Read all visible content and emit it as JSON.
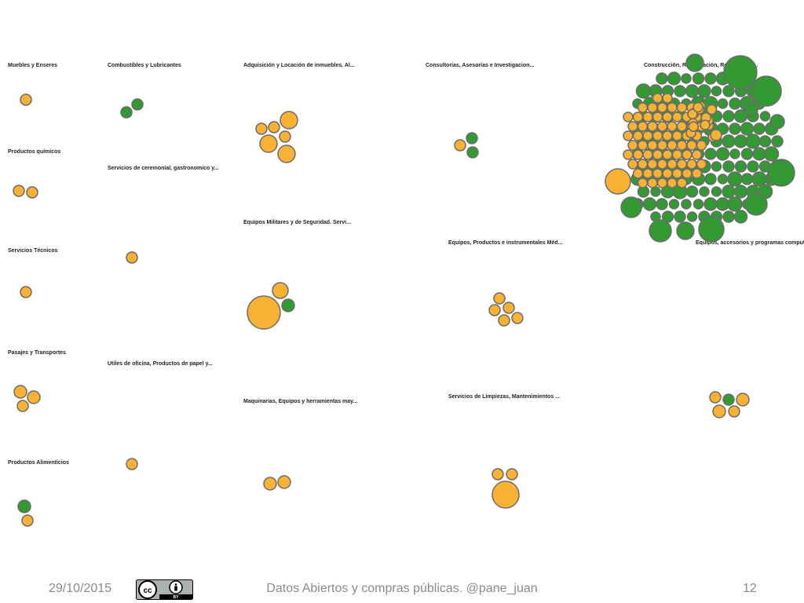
{
  "chart_data": {
    "type": "bubble",
    "colors": {
      "orange": "#f9b233",
      "green": "#339933",
      "stroke": "#6b6b6b"
    },
    "groups": [
      {
        "label": "Muebles y Enseres",
        "bubbles": [
          {
            "r": 7,
            "color": "orange"
          }
        ]
      },
      {
        "label": "Combustibles y Lubricantes",
        "bubbles": [
          {
            "r": 7,
            "color": "green"
          },
          {
            "r": 7,
            "color": "green"
          }
        ]
      },
      {
        "label": "Adquisición y Locación de inmuebles. Al...",
        "bubbles": [
          {
            "r": 11,
            "color": "orange"
          },
          {
            "r": 7,
            "color": "orange"
          },
          {
            "r": 7,
            "color": "orange"
          },
          {
            "r": 11,
            "color": "orange"
          },
          {
            "r": 7,
            "color": "orange"
          },
          {
            "r": 11,
            "color": "orange"
          }
        ]
      },
      {
        "label": "Consultorías, Asesorías e Investigacion...",
        "bubbles": [
          {
            "r": 7,
            "color": "orange"
          },
          {
            "r": 7,
            "color": "green"
          },
          {
            "r": 7,
            "color": "green"
          }
        ]
      },
      {
        "label": "Construcción, Restauración, Reconstrucc...",
        "bubbles": [
          {
            "r": 11,
            "color": "green"
          },
          {
            "r": 21,
            "color": "green"
          },
          {
            "r": 16,
            "color": "orange"
          },
          {
            "r": 19,
            "color": "green"
          },
          {
            "r": 17,
            "color": "green"
          },
          {
            "r": 14,
            "color": "green"
          },
          {
            "r": 14,
            "color": "green"
          },
          {
            "r": 16,
            "color": "green"
          },
          {
            "r": 13,
            "color": "green"
          },
          {
            "r": 11,
            "color": "green"
          },
          {
            "r": 9,
            "color": "green"
          },
          {
            "r": 8,
            "color": "green"
          },
          {
            "r": 7,
            "color": "orange"
          }
        ]
      },
      {
        "label": "Productos químicos",
        "bubbles": [
          {
            "r": 7,
            "color": "orange"
          },
          {
            "r": 7,
            "color": "orange"
          }
        ]
      },
      {
        "label": "Servicios de ceremonial, gastronomico y...",
        "bubbles": [
          {
            "r": 7,
            "color": "orange"
          }
        ]
      },
      {
        "label": "Equipos Militares y de Seguridad. Servi...",
        "bubbles": [
          {
            "r": 21,
            "color": "orange"
          },
          {
            "r": 10,
            "color": "orange"
          },
          {
            "r": 8,
            "color": "green"
          }
        ]
      },
      {
        "label": "Equipos, Productos e instrumentales Méd...",
        "bubbles": [
          {
            "r": 7,
            "color": "orange"
          },
          {
            "r": 7,
            "color": "orange"
          },
          {
            "r": 7,
            "color": "orange"
          },
          {
            "r": 7,
            "color": "orange"
          },
          {
            "r": 7,
            "color": "orange"
          }
        ]
      },
      {
        "label": "Equipos, accesorios y programas comput...",
        "bubbles": [
          {
            "r": 7,
            "color": "orange"
          },
          {
            "r": 7,
            "color": "green"
          },
          {
            "r": 8,
            "color": "orange"
          },
          {
            "r": 8,
            "color": "orange"
          },
          {
            "r": 7,
            "color": "orange"
          }
        ]
      },
      {
        "label": "Servicios Técnicos",
        "bubbles": [
          {
            "r": 7,
            "color": "orange"
          }
        ]
      },
      {
        "label": "Pasajes y Transportes",
        "bubbles": [
          {
            "r": 8,
            "color": "orange"
          },
          {
            "r": 8,
            "color": "orange"
          },
          {
            "r": 7,
            "color": "orange"
          }
        ]
      },
      {
        "label": "Utiles de oficina, Productos de papel y...",
        "bubbles": [
          {
            "r": 7,
            "color": "orange"
          }
        ]
      },
      {
        "label": "Maquinarias, Equipos y herramientas may...",
        "bubbles": [
          {
            "r": 8,
            "color": "orange"
          },
          {
            "r": 8,
            "color": "orange"
          }
        ]
      },
      {
        "label": "Servicios de Limpiezas, Mantenimientos ...",
        "bubbles": [
          {
            "r": 7,
            "color": "orange"
          },
          {
            "r": 7,
            "color": "orange"
          },
          {
            "r": 17,
            "color": "orange"
          }
        ]
      },
      {
        "label": "Productos Alimenticios",
        "bubbles": [
          {
            "r": 8,
            "color": "green"
          },
          {
            "r": 7,
            "color": "orange"
          }
        ]
      }
    ]
  },
  "footer": {
    "date": "29/10/2015",
    "center": "Datos Abiertos y compras públicas. @pane_juan",
    "page": "12",
    "license_badge": "CC BY"
  }
}
